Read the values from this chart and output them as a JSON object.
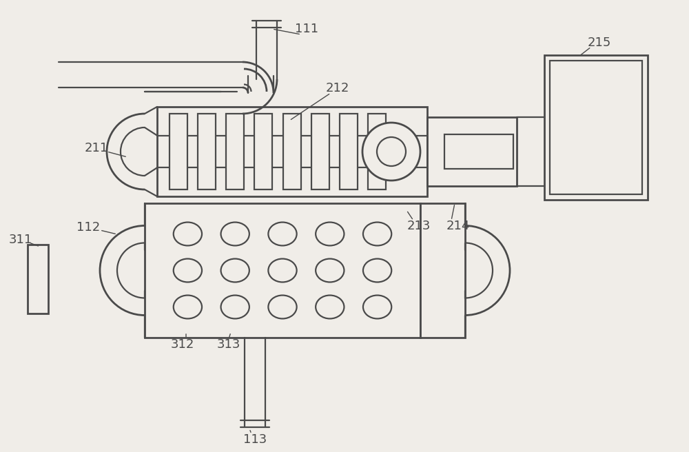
{
  "bg_color": "#f0ede8",
  "line_color": "#4a4a4a",
  "lw": 1.6,
  "lw2": 2.0,
  "fig_w": 10.0,
  "fig_h": 6.56
}
